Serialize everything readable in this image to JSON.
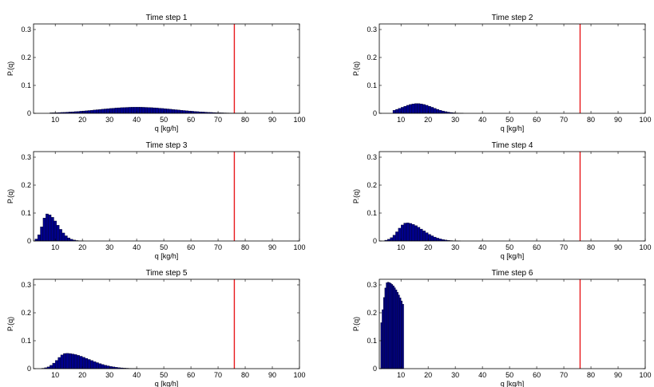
{
  "chart_data": [
    {
      "type": "bar",
      "title": "Time step 1",
      "xlabel": "q [kg/h]",
      "ylabel": "P.(q)",
      "xlim": [
        2,
        100
      ],
      "ylim": [
        0,
        0.32
      ],
      "xticks": [
        10,
        20,
        30,
        40,
        50,
        60,
        70,
        80,
        90,
        100
      ],
      "yticks": [
        0,
        0.1,
        0.2,
        0.3
      ],
      "threshold_line_x": 76,
      "bar_color": "#00008b",
      "line_color": "#e8181b",
      "peaks": [
        [
          40,
          0.022,
          0.7,
          0.35
        ]
      ],
      "range": [
        8,
        98
      ]
    },
    {
      "type": "bar",
      "title": "Time step 2",
      "xlabel": "q [kg/h]",
      "ylabel": "P.(q)",
      "xlim": [
        2,
        100
      ],
      "ylim": [
        0,
        0.32
      ],
      "xticks": [
        10,
        20,
        30,
        40,
        50,
        60,
        70,
        80,
        90,
        100
      ],
      "yticks": [
        0,
        0.1,
        0.2,
        0.3
      ],
      "threshold_line_x": 76,
      "bar_color": "#00008b",
      "line_color": "#e8181b",
      "peaks": [
        [
          16,
          0.035,
          0.7,
          0.35
        ]
      ],
      "range": [
        7,
        48
      ]
    },
    {
      "type": "bar",
      "title": "Time step 3",
      "xlabel": "q [kg/h]",
      "ylabel": "P.(q)",
      "xlim": [
        2,
        100
      ],
      "ylim": [
        0,
        0.32
      ],
      "xticks": [
        10,
        20,
        30,
        40,
        50,
        60,
        70,
        80,
        90,
        100
      ],
      "yticks": [
        0,
        0.1,
        0.2,
        0.3
      ],
      "threshold_line_x": 76,
      "bar_color": "#00008b",
      "line_color": "#e8181b",
      "peaks": [
        [
          7,
          0.097,
          0.5,
          0.55
        ]
      ],
      "range": [
        2.5,
        32
      ]
    },
    {
      "type": "bar",
      "title": "Time step 4",
      "xlabel": "q [kg/h]",
      "ylabel": "P.(q)",
      "xlim": [
        2,
        100
      ],
      "ylim": [
        0,
        0.32
      ],
      "xticks": [
        10,
        20,
        30,
        40,
        50,
        60,
        70,
        80,
        90,
        100
      ],
      "yticks": [
        0,
        0.1,
        0.2,
        0.3
      ],
      "threshold_line_x": 76,
      "bar_color": "#00008b",
      "line_color": "#e8181b",
      "peaks": [
        [
          12,
          0.065,
          0.5,
          0.5
        ]
      ],
      "range": [
        4,
        38
      ]
    },
    {
      "type": "bar",
      "title": "Time step 5",
      "xlabel": "q [kg/h]",
      "ylabel": "P.(q)",
      "xlim": [
        2,
        100
      ],
      "ylim": [
        0,
        0.32
      ],
      "xticks": [
        10,
        20,
        30,
        40,
        50,
        60,
        70,
        80,
        90,
        100
      ],
      "yticks": [
        0,
        0.1,
        0.2,
        0.3
      ],
      "threshold_line_x": 76,
      "bar_color": "#00008b",
      "line_color": "#e8181b",
      "peaks": [
        [
          14,
          0.055,
          0.45,
          0.6
        ]
      ],
      "range": [
        5,
        48
      ]
    },
    {
      "type": "bar",
      "title": "Time step 6",
      "xlabel": "q [kg/h]",
      "ylabel": "P.(q)",
      "xlim": [
        2,
        100
      ],
      "ylim": [
        0,
        0.32
      ],
      "xticks": [
        10,
        20,
        30,
        40,
        50,
        60,
        70,
        80,
        90,
        100
      ],
      "yticks": [
        0,
        0.1,
        0.2,
        0.3
      ],
      "threshold_line_x": 76,
      "bar_color": "#00008b",
      "line_color": "#e8181b",
      "peaks": [
        [
          5,
          0.31,
          0.8,
          1.5
        ]
      ],
      "range": [
        2.5,
        11
      ]
    }
  ]
}
